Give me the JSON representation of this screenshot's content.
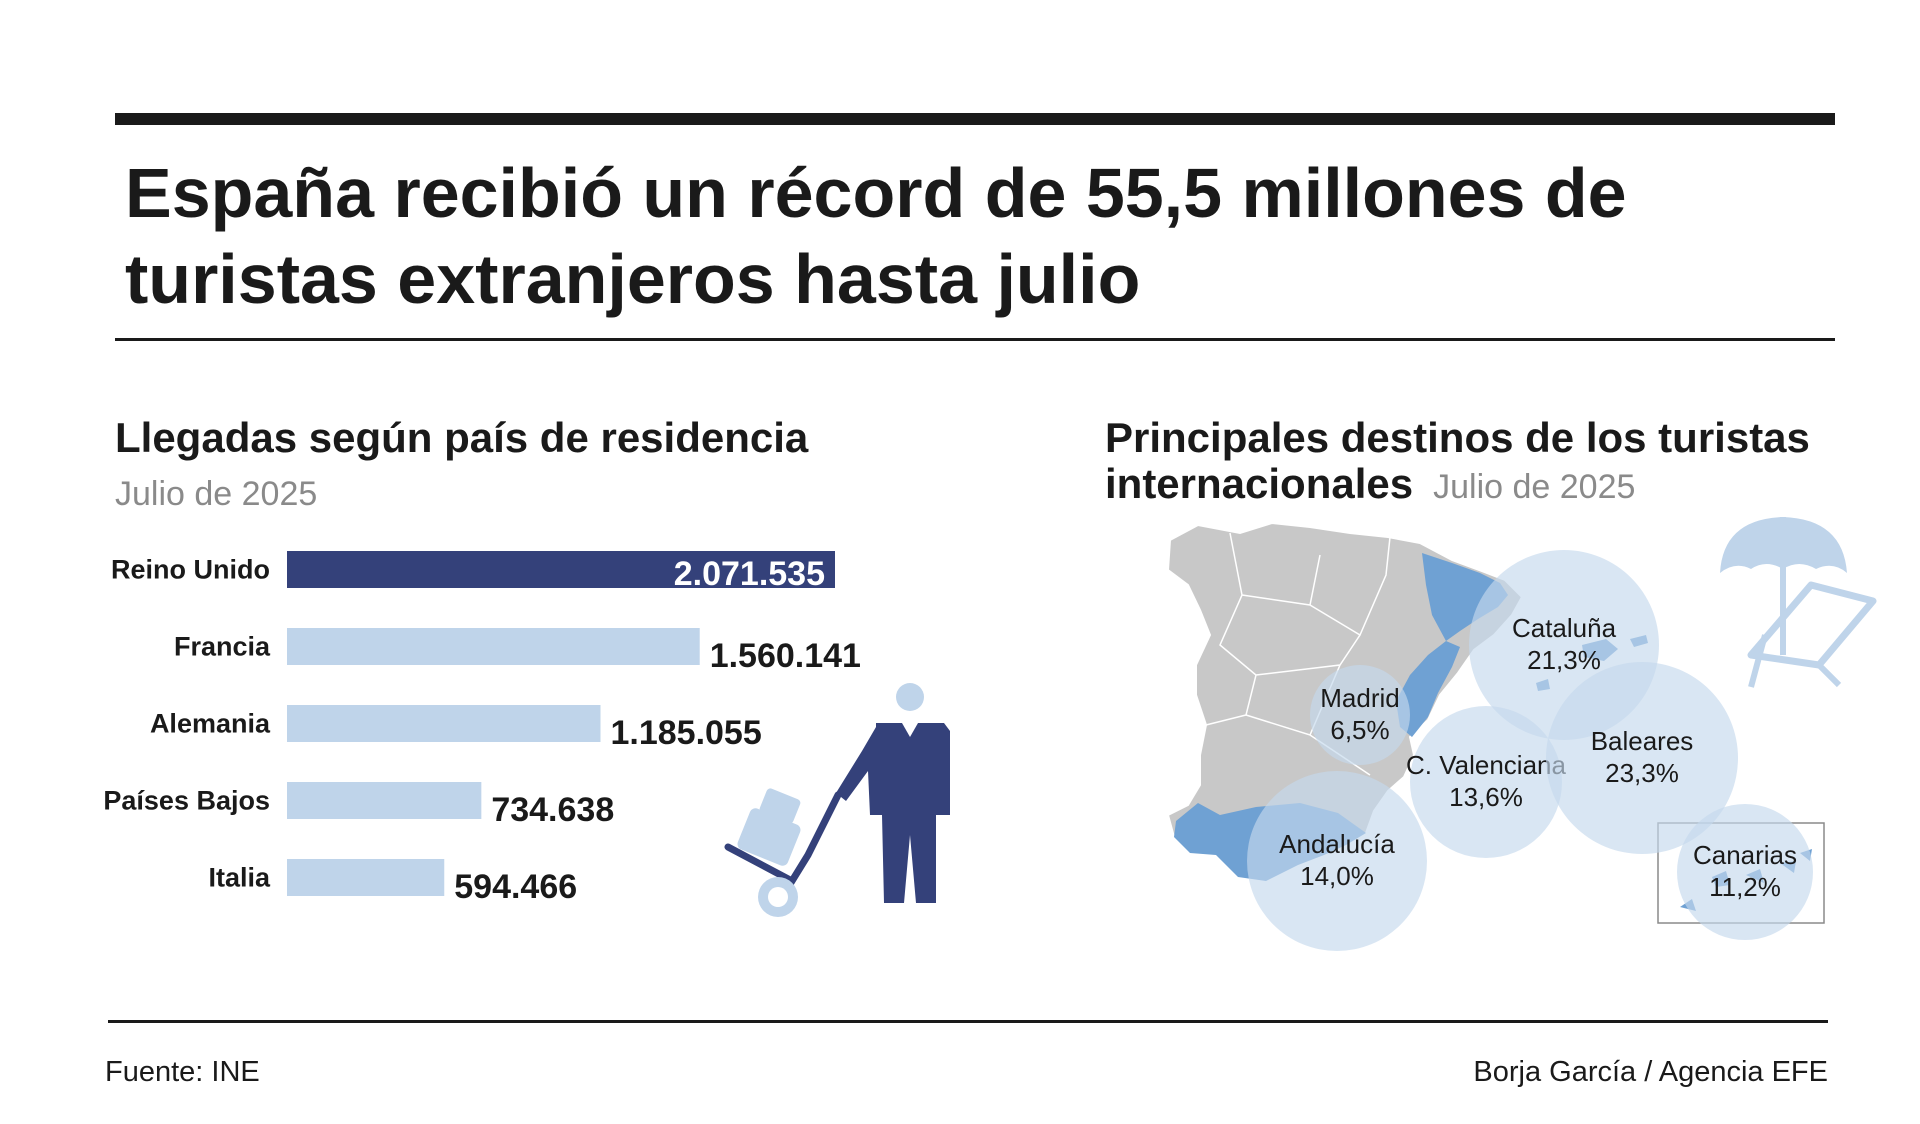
{
  "headline": "España recibió un récord de 55,5 millones de turistas extranjeros hasta julio",
  "left": {
    "title": "Llegadas según país de residencia",
    "date": "Julio de 2025"
  },
  "right": {
    "title": "Principales destinos de los turistas internacionales",
    "date": "Julio de 2025"
  },
  "footer": {
    "source": "Fuente: INE",
    "credit": "Borja García / Agencia EFE"
  },
  "colors": {
    "highlight_bar": "#34417a",
    "bar": "#bfd4ea",
    "circle": "#c5d8ec",
    "region_highlight": "#6fa1d3",
    "map_grey": "#c8c8c8",
    "icon": "#34417a"
  },
  "icons": [
    "traveler-with-luggage-icon",
    "beach-umbrella-deckchair-icon",
    "spain-map-icon"
  ],
  "chart_data": [
    {
      "type": "bar",
      "orientation": "horizontal",
      "title": "Llegadas según país de residencia",
      "subtitle": "Julio de 2025",
      "categories": [
        "Reino Unido",
        "Francia",
        "Alemania",
        "Países Bajos",
        "Italia"
      ],
      "values": [
        2071535,
        1560141,
        1185055,
        734638,
        594466
      ],
      "labels": [
        "2.071.535",
        "1.560.141",
        "1.185.055",
        "734.638",
        "594.466"
      ],
      "highlight_index": 0,
      "xlim": [
        0,
        2100000
      ]
    },
    {
      "type": "bubble-map",
      "title": "Principales destinos de los turistas internacionales",
      "subtitle": "Julio de 2025",
      "regions": [
        {
          "name": "Cataluña",
          "value": 21.3,
          "label": "21,3%"
        },
        {
          "name": "Madrid",
          "value": 6.5,
          "label": "6,5%"
        },
        {
          "name": "C. Valenciana",
          "value": 13.6,
          "label": "13,6%"
        },
        {
          "name": "Baleares",
          "value": 23.3,
          "label": "23,3%"
        },
        {
          "name": "Andalucía",
          "value": 14.0,
          "label": "14,0%"
        },
        {
          "name": "Canarias",
          "value": 11.2,
          "label": "11,2%"
        }
      ]
    }
  ]
}
